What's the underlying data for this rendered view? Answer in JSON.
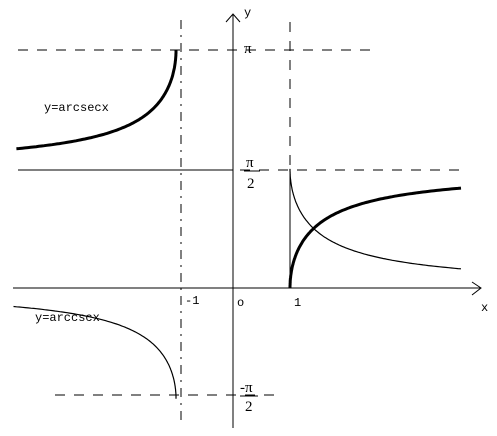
{
  "axes": {
    "y_label": "y",
    "x_label": "x",
    "origin": "o",
    "x_minus_one": "-1",
    "x_one": "1"
  },
  "y_marks": {
    "pi": "π",
    "half_pi_num": "π",
    "half_pi_den": "2",
    "neg_half_pi_num": "-π",
    "neg_half_pi_den": "2"
  },
  "curves": {
    "arcsec": "y=arcsecx",
    "arccsc": "y=arccscx"
  }
}
